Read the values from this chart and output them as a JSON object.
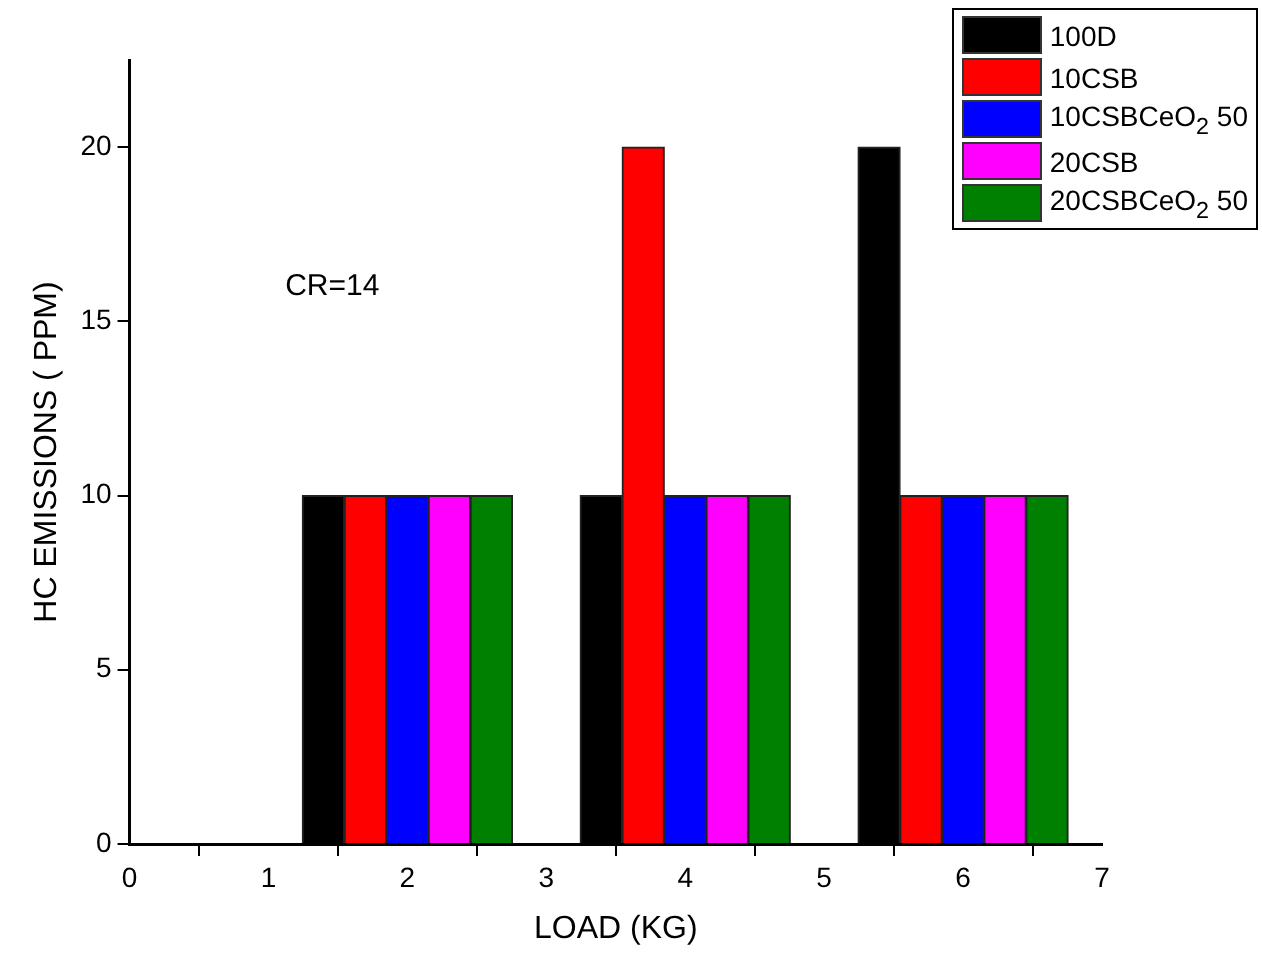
{
  "chart_data": {
    "type": "bar",
    "xlabel": "LOAD (KG)",
    "ylabel": "HC EMISSIONS ( PPM)",
    "annotations": [
      "CR=14"
    ],
    "x": [
      2,
      4,
      6
    ],
    "series": [
      {
        "name": "100D",
        "color": "#000000",
        "values": [
          10,
          10,
          20
        ]
      },
      {
        "name": "10CSB",
        "color": "#ff0000",
        "values": [
          10,
          20,
          10
        ]
      },
      {
        "name": "10CSBCeO$_{2}$ 50",
        "color": "#0000ff",
        "values": [
          10,
          10,
          10
        ]
      },
      {
        "name": "20CSB",
        "color": "#ff00ff",
        "values": [
          10,
          10,
          10
        ]
      },
      {
        "name": "20CSBCeO$_{2}$ 50",
        "color": "#008000",
        "values": [
          10,
          10,
          10
        ]
      }
    ],
    "xlim": [
      0,
      7
    ],
    "xticks": [
      0,
      1,
      2,
      3,
      4,
      5,
      6,
      7
    ],
    "ylim": [
      0,
      22.5
    ],
    "yticks": [
      0,
      5,
      10,
      15,
      20
    ],
    "grid": false,
    "legend": "top right"
  }
}
